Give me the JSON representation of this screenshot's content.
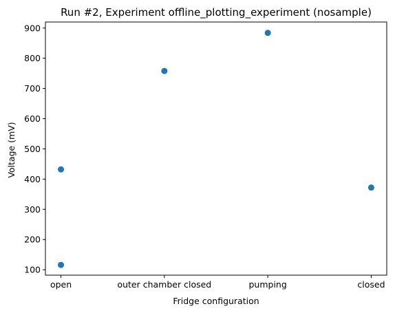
{
  "chart_data": {
    "type": "scatter",
    "title": "Run #2, Experiment offline_plotting_experiment (nosample)",
    "xlabel": "Fridge configuration",
    "ylabel": "Voltage (mV)",
    "categories": [
      "open",
      "outer chamber closed",
      "pumping",
      "closed"
    ],
    "ylim": [
      82,
      920
    ],
    "yticks": [
      100,
      200,
      300,
      400,
      500,
      600,
      700,
      800,
      900
    ],
    "series": [
      {
        "color": "#1f77b4",
        "points": [
          {
            "x": "open",
            "y": 116
          },
          {
            "x": "open",
            "y": 432
          },
          {
            "x": "outer chamber closed",
            "y": 758
          },
          {
            "x": "pumping",
            "y": 884
          },
          {
            "x": "closed",
            "y": 372
          }
        ]
      }
    ],
    "grid": false,
    "legend": "none"
  }
}
